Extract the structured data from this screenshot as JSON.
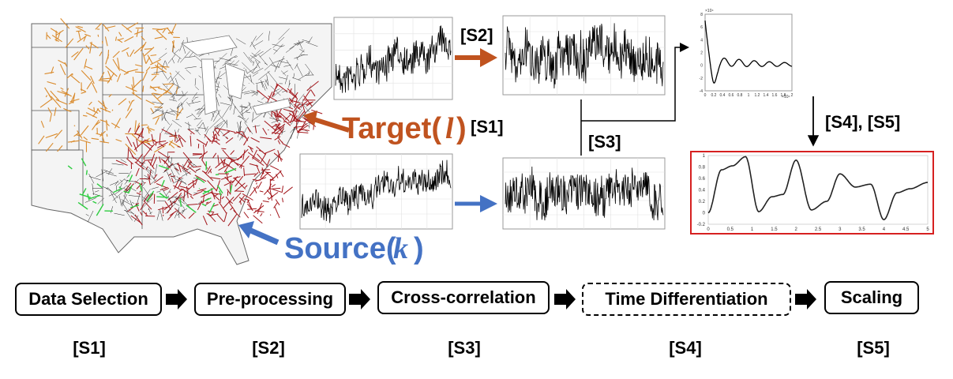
{
  "labels": {
    "target_word": "Target(",
    "target_var": "l",
    "target_close": ")",
    "source_word": "Source(",
    "source_var": "k",
    "source_close": ")",
    "s1_tag": "[S1]",
    "s2_tag": "[S2]",
    "s3_tag": "[S3]",
    "s45_tag": "[S4], [S5]"
  },
  "colors": {
    "target": "#c0531f",
    "source": "#4472c4",
    "highlight_box": "#d62020",
    "map_orange": "#d98a2b",
    "map_red": "#a3161b",
    "map_green": "#2ecc40"
  },
  "steps": [
    {
      "label": "Data Selection",
      "tag": "[S1]",
      "style": "solid"
    },
    {
      "label": "Pre-processing",
      "tag": "[S2]",
      "style": "solid"
    },
    {
      "label": "Cross-correlation",
      "tag": "[S3]",
      "style": "solid"
    },
    {
      "label": "Time Differentiation",
      "tag": "[S4]",
      "style": "dashed"
    },
    {
      "label": "Scaling",
      "tag": "[S5]",
      "style": "solid"
    }
  ],
  "xcorr_plot": {
    "y_exponent": "×10⁴",
    "x_exponent": "×10⁴",
    "y_ticks": [
      "8",
      "6",
      "4",
      "2",
      "0",
      "-2",
      "-4"
    ],
    "x_ticks": [
      "0",
      "0.2",
      "0.4",
      "0.6",
      "0.8",
      "1",
      "1.2",
      "1.4",
      "1.6",
      "1.8",
      "2"
    ]
  },
  "scaled_plot": {
    "y_ticks": [
      "1",
      "0.8",
      "0.6",
      "0.4",
      "0.2",
      "0",
      "-0.2"
    ],
    "x_ticks": [
      "0",
      "0.5",
      "1",
      "1.5",
      "2",
      "2.5",
      "3",
      "3.5",
      "4",
      "4.5",
      "5"
    ]
  }
}
